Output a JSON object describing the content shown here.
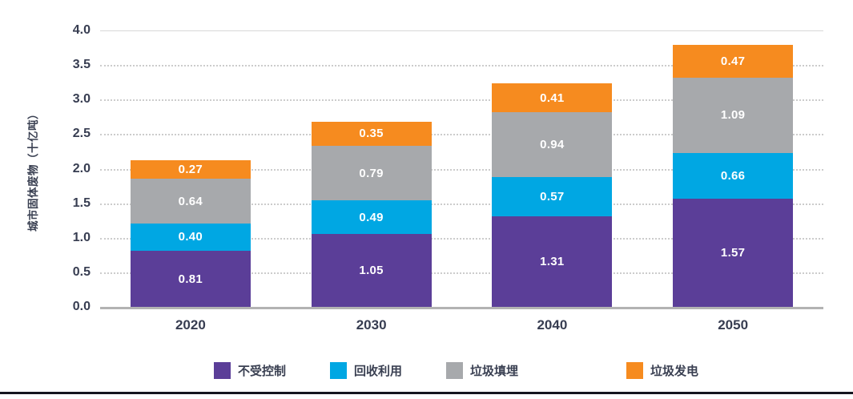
{
  "chart_data": {
    "type": "bar",
    "stacked": true,
    "title": "",
    "xlabel": "",
    "ylabel": "城市固体废物（十亿吨）",
    "categories": [
      "2020",
      "2030",
      "2040",
      "2050"
    ],
    "series": [
      {
        "name": "不受控制",
        "color": "#5b3e98",
        "values": [
          0.81,
          1.05,
          1.31,
          1.57
        ]
      },
      {
        "name": "回收利用",
        "color": "#00a7e3",
        "values": [
          0.4,
          0.49,
          0.57,
          0.66
        ]
      },
      {
        "name": "垃圾填埋",
        "color": "#a7a9ac",
        "values": [
          0.64,
          0.79,
          0.94,
          1.09
        ]
      },
      {
        "name": "垃圾发电",
        "color": "#f68b1f",
        "values": [
          0.27,
          0.35,
          0.41,
          0.47
        ]
      }
    ],
    "totals": [
      2.12,
      2.68,
      3.23,
      3.79
    ],
    "ylim": [
      0,
      4.0
    ],
    "ytick_step": 0.5,
    "yticks": [
      "4.0",
      "3.5",
      "3.0",
      "2.5",
      "2.0",
      "1.5",
      "1.0",
      "0.5",
      "0.0"
    ],
    "grid": "horizontal dotted gridlines; solid baseline at 0.0",
    "legend_position": "bottom",
    "value_labels": "inside segments, white, two decimals",
    "text_color": "#373d51",
    "gridline_color": "#cccccc",
    "baseline_color": "#b3b3b3"
  }
}
